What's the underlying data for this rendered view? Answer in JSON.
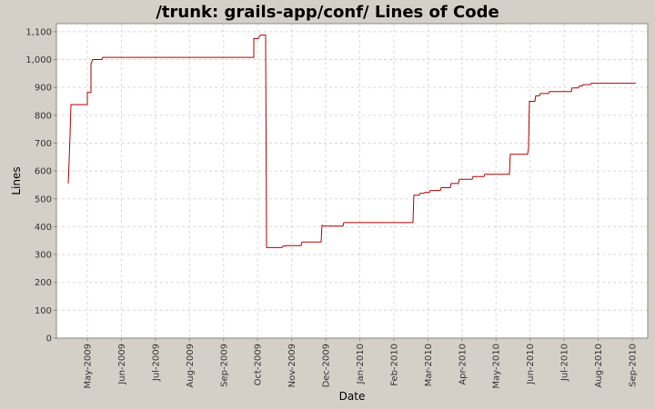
{
  "chart_data": {
    "type": "line",
    "title": "/trunk: grails-app/conf/ Lines of Code",
    "x_label": "Date",
    "y_label": "Lines",
    "x": [
      2009.2866,
      2009.2888,
      2009.291,
      2009.2932,
      2009.3333,
      2009.3333,
      2009.3422,
      2009.3422,
      2009.3467,
      2009.3689,
      2009.3711,
      2009.7406,
      2009.7406,
      2009.7517,
      2009.7562,
      2009.7695,
      2009.7718,
      2009.8096,
      2009.8118,
      2009.823,
      2009.8563,
      2009.8586,
      2009.9053,
      2009.9075,
      2009.912,
      2009.9587,
      2009.9609,
      2010.1301,
      2010.1323,
      2010.1457,
      2010.1479,
      2010.1568,
      2010.159,
      2010.1702,
      2010.1724,
      2010.1969,
      2010.1991,
      2010.2214,
      2010.2236,
      2010.2414,
      2010.2436,
      2010.2748,
      2010.277,
      2010.3037,
      2010.3059,
      2010.366,
      2010.3683,
      2010.4105,
      2010.4128,
      2010.415,
      2010.4283,
      2010.4306,
      2010.4395,
      2010.4417,
      2010.4617,
      2010.464,
      2010.5174,
      2010.5196,
      2010.5352,
      2010.5374,
      2010.5441,
      2010.5463,
      2010.5641,
      2010.5663,
      2010.6754
    ],
    "series": [
      {
        "name": "Lines",
        "color": "#b00000",
        "values": [
          555,
          640,
          730,
          838,
          838,
          882,
          882,
          985,
          1000,
          1000,
          1008,
          1008,
          1075,
          1075,
          1088,
          1088,
          325,
          325,
          330,
          332,
          332,
          345,
          345,
          405,
          402,
          402,
          415,
          415,
          513,
          513,
          520,
          520,
          523,
          523,
          530,
          530,
          540,
          540,
          555,
          555,
          570,
          570,
          580,
          580,
          588,
          588,
          660,
          660,
          680,
          850,
          850,
          870,
          870,
          878,
          878,
          885,
          885,
          898,
          898,
          905,
          905,
          910,
          910,
          915,
          915
        ]
      }
    ],
    "xlim": [
      2009.2576,
      2010.7045
    ],
    "xticks": [
      {
        "value": 2009.3333,
        "label": "May-2009"
      },
      {
        "value": 2009.4167,
        "label": "Jun-2009"
      },
      {
        "value": 2009.5,
        "label": "Jul-2009"
      },
      {
        "value": 2009.5833,
        "label": "Aug-2009"
      },
      {
        "value": 2009.6667,
        "label": "Sep-2009"
      },
      {
        "value": 2009.75,
        "label": "Oct-2009"
      },
      {
        "value": 2009.8333,
        "label": "Nov-2009"
      },
      {
        "value": 2009.9167,
        "label": "Dec-2009"
      },
      {
        "value": 2010,
        "label": "Jan-2010"
      },
      {
        "value": 2010.0833,
        "label": "Feb-2010"
      },
      {
        "value": 2010.1667,
        "label": "Mar-2010"
      },
      {
        "value": 2010.25,
        "label": "Apr-2010"
      },
      {
        "value": 2010.3333,
        "label": "May-2010"
      },
      {
        "value": 2010.4167,
        "label": "Jun-2010"
      },
      {
        "value": 2010.5,
        "label": "Jul-2010"
      },
      {
        "value": 2010.5833,
        "label": "Aug-2010"
      },
      {
        "value": 2010.6667,
        "label": "Sep-2010"
      }
    ],
    "ylim": [
      0,
      1129
    ],
    "yticks": [
      0,
      100,
      200,
      300,
      400,
      500,
      600,
      700,
      800,
      900,
      {
        "value": 1000,
        "label": "1,000"
      },
      {
        "value": 1100,
        "label": "1,100"
      }
    ],
    "grid": true
  }
}
